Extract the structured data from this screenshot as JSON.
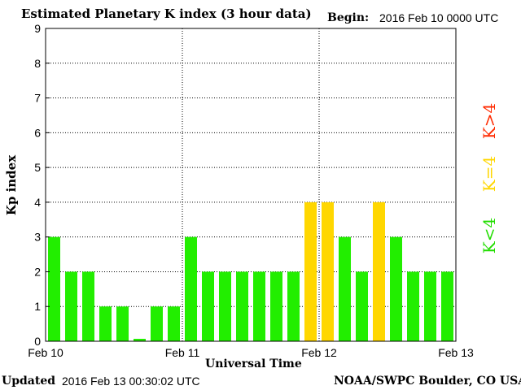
{
  "header": {
    "title": "Estimated Planetary K index (3 hour data)",
    "begin_label": "Begin:",
    "begin_value": "2016 Feb 10 0000 UTC"
  },
  "footer": {
    "updated_label": "Updated",
    "updated_value": "2016 Feb 13 00:30:02 UTC",
    "credit": "NOAA/SWPC Boulder, CO USA"
  },
  "legend": {
    "above": "K>4",
    "equal": "K=4",
    "below": "K<4"
  },
  "colors": {
    "below": "#22ee00",
    "equal": "#ffd700",
    "above": "#ff2a00"
  },
  "chart_data": {
    "type": "bar",
    "xlabel": "Universal Time",
    "ylabel": "Kp index",
    "ylim": [
      0,
      9
    ],
    "yticks": [
      0,
      1,
      2,
      3,
      4,
      5,
      6,
      7,
      8,
      9
    ],
    "xticks": [
      "Feb 10",
      "Feb 11",
      "Feb 12",
      "Feb 13"
    ],
    "grid": true,
    "series": [
      {
        "values": [
          3,
          2,
          2,
          1,
          1,
          0.07,
          1,
          1,
          3,
          2,
          2,
          2,
          2,
          2,
          2,
          4,
          4,
          3,
          2,
          4,
          3,
          2,
          2,
          2
        ]
      }
    ]
  }
}
